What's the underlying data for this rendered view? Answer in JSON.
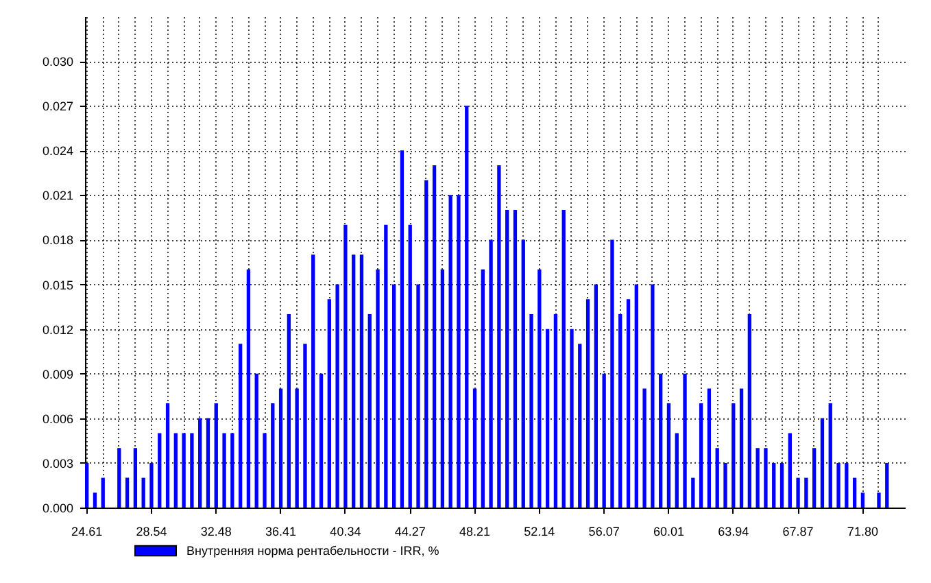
{
  "chart_data": {
    "type": "bar",
    "categories": [
      "24.61",
      null,
      null,
      null,
      null,
      null,
      null,
      null,
      "28.54",
      null,
      null,
      null,
      null,
      null,
      null,
      null,
      "32.48",
      null,
      null,
      null,
      null,
      null,
      null,
      null,
      "36.41",
      null,
      null,
      null,
      null,
      null,
      null,
      null,
      "40.34",
      null,
      null,
      null,
      null,
      null,
      null,
      null,
      "44.27",
      null,
      null,
      null,
      null,
      null,
      null,
      null,
      "48.21",
      null,
      null,
      null,
      null,
      null,
      null,
      null,
      "52.14",
      null,
      null,
      null,
      null,
      null,
      null,
      null,
      "56.07",
      null,
      null,
      null,
      null,
      null,
      null,
      null,
      "60.01",
      null,
      null,
      null,
      null,
      null,
      null,
      null,
      "63.94",
      null,
      null,
      null,
      null,
      null,
      null,
      null,
      "67.87",
      null,
      null,
      null,
      null,
      null,
      null,
      null,
      "71.80",
      null,
      null,
      null
    ],
    "series": [
      {
        "name": "Внутренняя норма рентабельности - IRR, %",
        "color": "#0000ff",
        "values": [
          0.003,
          0.001,
          0.002,
          0,
          0.004,
          0.002,
          0.004,
          0.002,
          0.003,
          0.005,
          0.007,
          0.005,
          0.005,
          0.005,
          0.006,
          0.006,
          0.007,
          0.005,
          0.005,
          0.011,
          0.016,
          0.009,
          0.005,
          0.007,
          0.008,
          0.013,
          0.008,
          0.011,
          0.017,
          0.009,
          0.014,
          0.015,
          0.019,
          0.017,
          0.017,
          0.013,
          0.016,
          0.019,
          0.015,
          0.024,
          0.019,
          0.015,
          0.022,
          0.023,
          0.016,
          0.021,
          0.021,
          0.027,
          0.008,
          0.016,
          0.018,
          0.023,
          0.02,
          0.02,
          0.018,
          0.013,
          0.016,
          0.012,
          0.013,
          0.02,
          0.012,
          0.011,
          0.014,
          0.015,
          0.009,
          0.018,
          0.013,
          0.014,
          0.015,
          0.008,
          0.015,
          0.009,
          0.007,
          0.005,
          0.009,
          0.002,
          0.007,
          0.008,
          0.004,
          0.003,
          0.007,
          0.008,
          0.013,
          0.004,
          0.004,
          0.003,
          0.003,
          0.005,
          0.002,
          0.002,
          0.004,
          0.006,
          0.007,
          0.003,
          0.003,
          0.002,
          0.001,
          0,
          0.001,
          0.003
        ]
      }
    ],
    "ylim": [
      0,
      0.033
    ],
    "yticks": [
      {
        "value": 0,
        "label": "0.000"
      },
      0.003,
      0.006,
      0.009,
      0.012,
      0.015,
      0.018,
      0.021,
      0.024,
      0.027,
      {
        "value": 0.03,
        "label": "0.030"
      }
    ],
    "grid": true,
    "legend": "bottom"
  }
}
